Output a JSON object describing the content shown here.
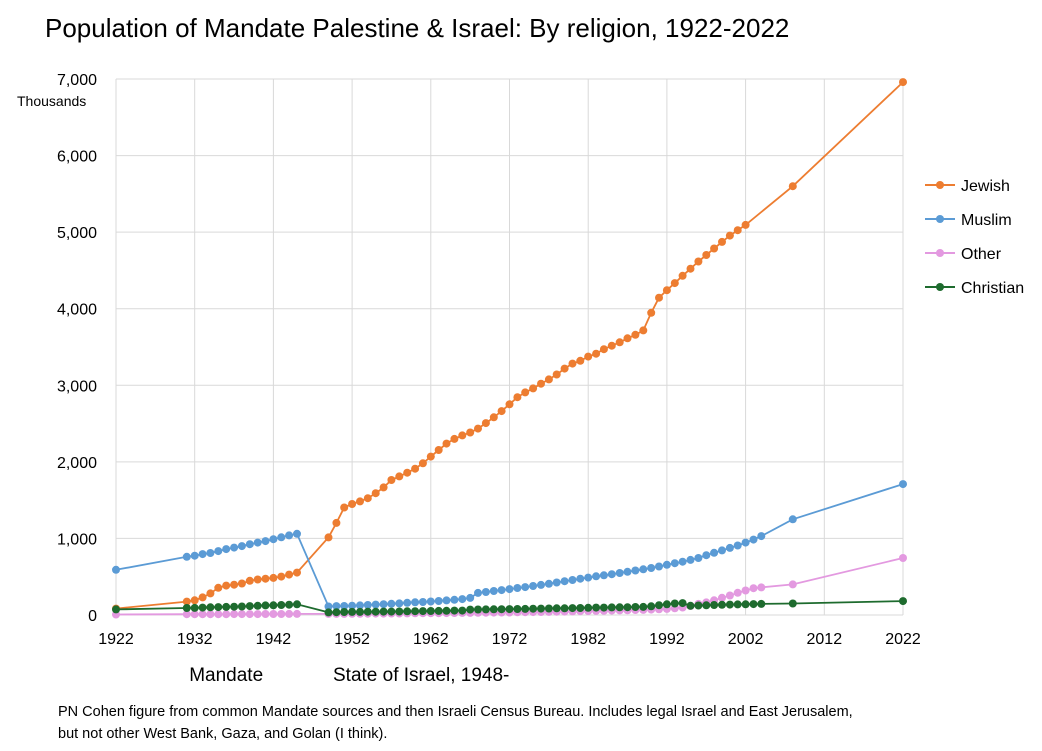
{
  "chart_data": {
    "type": "line",
    "title": "Population of Mandate Palestine & Israel: By religion, 1922-2022",
    "y_unit_label": "Thousands",
    "xlim": [
      1922,
      2022
    ],
    "ylim": [
      0,
      7000
    ],
    "x_ticks": [
      "1922",
      "1932",
      "1942",
      "1952",
      "1962",
      "1972",
      "1982",
      "1992",
      "2002",
      "2012",
      "2022"
    ],
    "y_ticks": [
      "0",
      "1,000",
      "2,000",
      "3,000",
      "4,000",
      "5,000",
      "6,000",
      "7,000"
    ],
    "grid": true,
    "legend_position": "right",
    "era_labels": [
      {
        "text": "Mandate",
        "year": 1936
      },
      {
        "text": "State of Israel, 1948-",
        "year": 1958
      }
    ],
    "note_lines": [
      "PN Cohen figure from common Mandate sources and then Israeli Census Bureau. Includes legal Israel and East Jerusalem,",
      "but not other West Bank, Gaza, and Golan (I think)."
    ],
    "series": [
      {
        "name": "Jewish",
        "color": "#ED7D31",
        "points": [
          [
            1922,
            84
          ],
          [
            1931,
            175
          ],
          [
            1932,
            192
          ],
          [
            1933,
            230
          ],
          [
            1934,
            282
          ],
          [
            1935,
            355
          ],
          [
            1936,
            384
          ],
          [
            1937,
            396
          ],
          [
            1938,
            411
          ],
          [
            1939,
            446
          ],
          [
            1940,
            464
          ],
          [
            1941,
            474
          ],
          [
            1942,
            484
          ],
          [
            1943,
            502
          ],
          [
            1944,
            528
          ],
          [
            1945,
            554
          ],
          [
            1949,
            1014
          ],
          [
            1950,
            1203
          ],
          [
            1951,
            1404
          ],
          [
            1952,
            1450
          ],
          [
            1953,
            1484
          ],
          [
            1954,
            1526
          ],
          [
            1955,
            1591
          ],
          [
            1956,
            1667
          ],
          [
            1957,
            1763
          ],
          [
            1958,
            1810
          ],
          [
            1959,
            1859
          ],
          [
            1960,
            1911
          ],
          [
            1961,
            1981
          ],
          [
            1962,
            2069
          ],
          [
            1963,
            2155
          ],
          [
            1964,
            2239
          ],
          [
            1965,
            2300
          ],
          [
            1966,
            2345
          ],
          [
            1967,
            2384
          ],
          [
            1968,
            2434
          ],
          [
            1969,
            2506
          ],
          [
            1970,
            2582
          ],
          [
            1971,
            2663
          ],
          [
            1972,
            2752
          ],
          [
            1973,
            2845
          ],
          [
            1974,
            2907
          ],
          [
            1975,
            2959
          ],
          [
            1976,
            3021
          ],
          [
            1977,
            3077
          ],
          [
            1978,
            3141
          ],
          [
            1979,
            3218
          ],
          [
            1980,
            3283
          ],
          [
            1981,
            3320
          ],
          [
            1982,
            3374
          ],
          [
            1983,
            3413
          ],
          [
            1984,
            3471
          ],
          [
            1985,
            3517
          ],
          [
            1986,
            3561
          ],
          [
            1987,
            3613
          ],
          [
            1988,
            3659
          ],
          [
            1989,
            3717
          ],
          [
            1990,
            3947
          ],
          [
            1991,
            4144
          ],
          [
            1992,
            4242
          ],
          [
            1993,
            4335
          ],
          [
            1994,
            4430
          ],
          [
            1995,
            4522
          ],
          [
            1996,
            4616
          ],
          [
            1997,
            4702
          ],
          [
            1998,
            4786
          ],
          [
            1999,
            4872
          ],
          [
            2000,
            4955
          ],
          [
            2001,
            5025
          ],
          [
            2002,
            5094
          ],
          [
            2008,
            5600
          ],
          [
            2022,
            6960
          ]
        ]
      },
      {
        "name": "Muslim",
        "color": "#5B9BD5",
        "points": [
          [
            1922,
            590
          ],
          [
            1931,
            760
          ],
          [
            1932,
            775
          ],
          [
            1933,
            795
          ],
          [
            1934,
            810
          ],
          [
            1935,
            835
          ],
          [
            1936,
            860
          ],
          [
            1937,
            880
          ],
          [
            1938,
            900
          ],
          [
            1939,
            925
          ],
          [
            1940,
            945
          ],
          [
            1941,
            965
          ],
          [
            1942,
            990
          ],
          [
            1943,
            1015
          ],
          [
            1944,
            1040
          ],
          [
            1945,
            1060
          ],
          [
            1949,
            111
          ],
          [
            1950,
            116
          ],
          [
            1951,
            118
          ],
          [
            1952,
            122
          ],
          [
            1953,
            126
          ],
          [
            1954,
            131
          ],
          [
            1955,
            136
          ],
          [
            1956,
            141
          ],
          [
            1957,
            146
          ],
          [
            1958,
            152
          ],
          [
            1959,
            159
          ],
          [
            1960,
            166
          ],
          [
            1961,
            170
          ],
          [
            1962,
            176
          ],
          [
            1963,
            183
          ],
          [
            1964,
            191
          ],
          [
            1965,
            198
          ],
          [
            1966,
            208
          ],
          [
            1967,
            223
          ],
          [
            1968,
            289
          ],
          [
            1969,
            300
          ],
          [
            1970,
            313
          ],
          [
            1971,
            325
          ],
          [
            1972,
            338
          ],
          [
            1973,
            352
          ],
          [
            1974,
            365
          ],
          [
            1975,
            379
          ],
          [
            1976,
            393
          ],
          [
            1977,
            407
          ],
          [
            1978,
            425
          ],
          [
            1979,
            441
          ],
          [
            1980,
            457
          ],
          [
            1981,
            474
          ],
          [
            1982,
            489
          ],
          [
            1983,
            505
          ],
          [
            1984,
            518
          ],
          [
            1985,
            533
          ],
          [
            1986,
            548
          ],
          [
            1987,
            564
          ],
          [
            1988,
            581
          ],
          [
            1989,
            597
          ],
          [
            1990,
            614
          ],
          [
            1991,
            634
          ],
          [
            1992,
            655
          ],
          [
            1993,
            676
          ],
          [
            1994,
            696
          ],
          [
            1995,
            720
          ],
          [
            1996,
            745
          ],
          [
            1997,
            781
          ],
          [
            1998,
            812
          ],
          [
            1999,
            844
          ],
          [
            2000,
            876
          ],
          [
            2001,
            908
          ],
          [
            2002,
            945
          ],
          [
            2003,
            985
          ],
          [
            2004,
            1030
          ],
          [
            2008,
            1250
          ],
          [
            2022,
            1710
          ]
        ]
      },
      {
        "name": "Other",
        "color": "#E399E0",
        "points": [
          [
            1922,
            7
          ],
          [
            1931,
            10
          ],
          [
            1932,
            10
          ],
          [
            1933,
            10
          ],
          [
            1934,
            11
          ],
          [
            1935,
            11
          ],
          [
            1936,
            11
          ],
          [
            1937,
            12
          ],
          [
            1938,
            12
          ],
          [
            1939,
            12
          ],
          [
            1940,
            12
          ],
          [
            1941,
            13
          ],
          [
            1942,
            13
          ],
          [
            1943,
            13
          ],
          [
            1944,
            14
          ],
          [
            1945,
            14
          ],
          [
            1949,
            14
          ],
          [
            1950,
            15
          ],
          [
            1951,
            15
          ],
          [
            1952,
            16
          ],
          [
            1953,
            16
          ],
          [
            1954,
            17
          ],
          [
            1955,
            18
          ],
          [
            1956,
            18
          ],
          [
            1957,
            19
          ],
          [
            1958,
            20
          ],
          [
            1959,
            21
          ],
          [
            1960,
            22
          ],
          [
            1961,
            23
          ],
          [
            1962,
            23
          ],
          [
            1963,
            24
          ],
          [
            1964,
            25
          ],
          [
            1965,
            26
          ],
          [
            1966,
            27
          ],
          [
            1967,
            28
          ],
          [
            1968,
            29
          ],
          [
            1969,
            30
          ],
          [
            1970,
            31
          ],
          [
            1971,
            32
          ],
          [
            1972,
            33
          ],
          [
            1973,
            35
          ],
          [
            1974,
            36
          ],
          [
            1975,
            38
          ],
          [
            1976,
            39
          ],
          [
            1977,
            41
          ],
          [
            1978,
            43
          ],
          [
            1979,
            45
          ],
          [
            1980,
            47
          ],
          [
            1981,
            49
          ],
          [
            1982,
            51
          ],
          [
            1983,
            53
          ],
          [
            1984,
            55
          ],
          [
            1985,
            58
          ],
          [
            1986,
            60
          ],
          [
            1987,
            62
          ],
          [
            1988,
            65
          ],
          [
            1989,
            67
          ],
          [
            1990,
            70
          ],
          [
            1991,
            75
          ],
          [
            1992,
            80
          ],
          [
            1993,
            88
          ],
          [
            1994,
            98
          ],
          [
            1995,
            118
          ],
          [
            1996,
            145
          ],
          [
            1997,
            165
          ],
          [
            1998,
            192
          ],
          [
            1999,
            225
          ],
          [
            2000,
            255
          ],
          [
            2001,
            290
          ],
          [
            2002,
            320
          ],
          [
            2003,
            350
          ],
          [
            2004,
            360
          ],
          [
            2008,
            400
          ],
          [
            2022,
            745
          ]
        ]
      },
      {
        "name": "Christian",
        "color": "#1E6B2E",
        "points": [
          [
            1922,
            73
          ],
          [
            1931,
            91
          ],
          [
            1932,
            93
          ],
          [
            1933,
            96
          ],
          [
            1934,
            100
          ],
          [
            1935,
            103
          ],
          [
            1936,
            106
          ],
          [
            1937,
            109
          ],
          [
            1938,
            111
          ],
          [
            1939,
            116
          ],
          [
            1940,
            120
          ],
          [
            1941,
            125
          ],
          [
            1942,
            127
          ],
          [
            1943,
            131
          ],
          [
            1944,
            135
          ],
          [
            1945,
            140
          ],
          [
            1949,
            34
          ],
          [
            1950,
            36
          ],
          [
            1951,
            39
          ],
          [
            1952,
            40
          ],
          [
            1953,
            41
          ],
          [
            1954,
            43
          ],
          [
            1955,
            43
          ],
          [
            1956,
            44
          ],
          [
            1957,
            45
          ],
          [
            1958,
            46
          ],
          [
            1959,
            48
          ],
          [
            1960,
            49
          ],
          [
            1961,
            51
          ],
          [
            1962,
            52
          ],
          [
            1963,
            54
          ],
          [
            1964,
            55
          ],
          [
            1965,
            57
          ],
          [
            1966,
            58
          ],
          [
            1967,
            71
          ],
          [
            1968,
            72
          ],
          [
            1969,
            73
          ],
          [
            1970,
            75
          ],
          [
            1971,
            76
          ],
          [
            1972,
            77
          ],
          [
            1973,
            79
          ],
          [
            1974,
            80
          ],
          [
            1975,
            82
          ],
          [
            1976,
            84
          ],
          [
            1977,
            85
          ],
          [
            1978,
            87
          ],
          [
            1979,
            88
          ],
          [
            1980,
            90
          ],
          [
            1981,
            92
          ],
          [
            1982,
            94
          ],
          [
            1983,
            96
          ],
          [
            1984,
            97
          ],
          [
            1985,
            99
          ],
          [
            1986,
            100
          ],
          [
            1987,
            102
          ],
          [
            1988,
            104
          ],
          [
            1989,
            106
          ],
          [
            1990,
            114
          ],
          [
            1991,
            128
          ],
          [
            1992,
            140
          ],
          [
            1993,
            150
          ],
          [
            1994,
            155
          ],
          [
            1995,
            120
          ],
          [
            1996,
            124
          ],
          [
            1997,
            127
          ],
          [
            1998,
            130
          ],
          [
            1999,
            133
          ],
          [
            2000,
            136
          ],
          [
            2001,
            138
          ],
          [
            2002,
            140
          ],
          [
            2003,
            142
          ],
          [
            2004,
            145
          ],
          [
            2008,
            150
          ],
          [
            2022,
            182
          ]
        ]
      }
    ]
  }
}
